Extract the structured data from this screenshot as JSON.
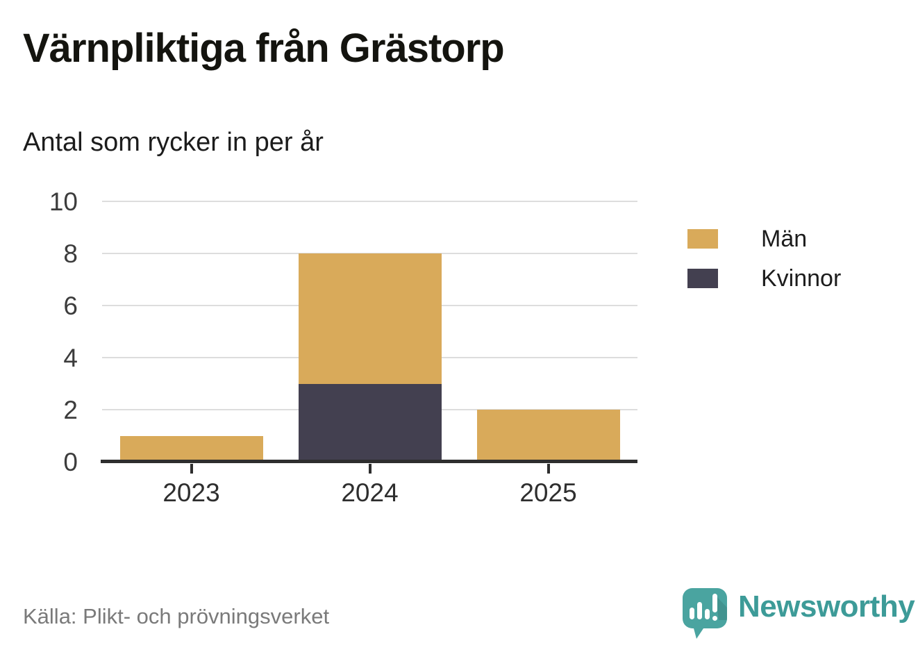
{
  "title": "Värnpliktiga från Grästorp",
  "subtitle": "Antal som rycker in per år",
  "source": "Källa: Plikt- och prövningsverket",
  "branding": {
    "name": "Newsworthy",
    "logo_icon": "bar-chart-speech-bubble",
    "wordmark_color": "#3d9b98",
    "icon_color": "#4aa4a0"
  },
  "colors": {
    "men": "#d9aa5a",
    "women": "#434050",
    "gridline": "#dddddd",
    "axis": "#2e2e2e",
    "tick_label": "#3c3c3c",
    "source_text": "#7a7a7a"
  },
  "chart_data": {
    "type": "bar",
    "stacked": true,
    "title": "Värnpliktiga från Grästorp",
    "subtitle": "Antal som rycker in per år",
    "categories": [
      "2023",
      "2024",
      "2025"
    ],
    "series": [
      {
        "name": "Män",
        "color": "#d9aa5a",
        "values": [
          1,
          5,
          2
        ]
      },
      {
        "name": "Kvinnor",
        "color": "#434050",
        "values": [
          0,
          3,
          0
        ]
      }
    ],
    "stack_order_bottom_to_top": [
      "Kvinnor",
      "Män"
    ],
    "totals": [
      1,
      8,
      2
    ],
    "xlabel": "",
    "ylabel": "",
    "ylim": [
      0,
      10
    ],
    "yticks": [
      0,
      2,
      4,
      6,
      8,
      10
    ],
    "grid": true,
    "legend_position": "right"
  }
}
